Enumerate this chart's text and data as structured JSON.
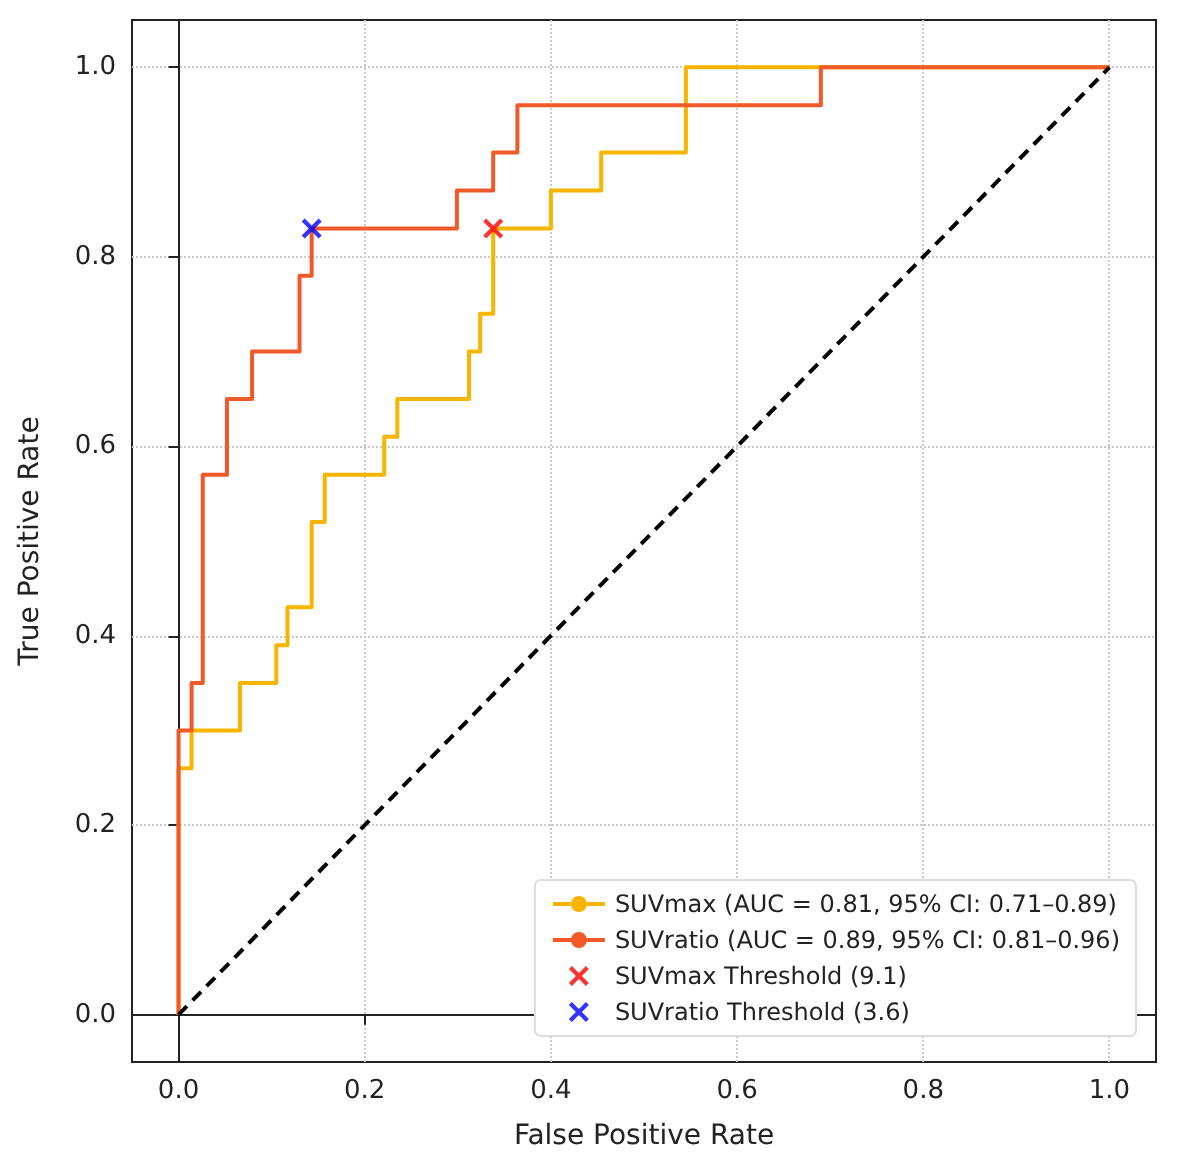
{
  "chart_data": {
    "type": "step",
    "xlabel": "False Positive Rate",
    "ylabel": "True Positive Rate",
    "xlim": [
      -0.05,
      1.05
    ],
    "ylim": [
      -0.05,
      1.05
    ],
    "xticks": [
      {
        "value": 0,
        "label": "0.0"
      },
      {
        "value": 0.2,
        "label": "0.2"
      },
      {
        "value": 0.4,
        "label": "0.4"
      },
      {
        "value": 0.6,
        "label": "0.6"
      },
      {
        "value": 0.8,
        "label": "0.8"
      },
      {
        "value": 1,
        "label": "1.0"
      }
    ],
    "yticks": [
      {
        "value": 0,
        "label": "0.0"
      },
      {
        "value": 0.2,
        "label": "0.2"
      },
      {
        "value": 0.4,
        "label": "0.4"
      },
      {
        "value": 0.6,
        "label": "0.6"
      },
      {
        "value": 0.8,
        "label": "0.8"
      },
      {
        "value": 1,
        "label": "1.0"
      }
    ],
    "grid": true,
    "legend": "bottom right",
    "series": [
      {
        "name": "SUVmax (AUC = 0.81, 95% CI: 0.71–0.89)",
        "color": "#f7b500",
        "x": [
          0,
          0,
          0.014,
          0.066,
          0.105,
          0.117,
          0.143,
          0.157,
          0.221,
          0.235,
          0.312,
          0.324,
          0.338,
          0.4,
          0.454,
          0.545,
          1
        ],
        "values": [
          0,
          0.26,
          0.3,
          0.35,
          0.39,
          0.43,
          0.52,
          0.57,
          0.61,
          0.65,
          0.7,
          0.74,
          0.83,
          0.87,
          0.91,
          1,
          1
        ]
      },
      {
        "name": "SUVratio (AUC = 0.89, 95% CI: 0.81–0.96)",
        "color": "#f05a28",
        "x": [
          0,
          0,
          0.014,
          0.026,
          0.052,
          0.079,
          0.13,
          0.143,
          0.299,
          0.338,
          0.364,
          0.69,
          1
        ],
        "values": [
          0,
          0.3,
          0.35,
          0.57,
          0.65,
          0.7,
          0.78,
          0.83,
          0.87,
          0.91,
          0.96,
          1,
          1
        ]
      },
      {
        "type": "line",
        "color": "#000000",
        "line_style": "dashed",
        "marker": "none",
        "x": [
          0,
          1
        ],
        "values": [
          0,
          1
        ]
      },
      {
        "type": "scatter",
        "name": "SUVmax Threshold (9.1)",
        "color": "#ff0000",
        "marker": "cross",
        "x": [
          0.338
        ],
        "values": [
          0.83
        ]
      },
      {
        "type": "scatter",
        "name": "SUVratio Threshold (3.6)",
        "color": "#0000ff",
        "marker": "cross",
        "x": [
          0.143
        ],
        "values": [
          0.83
        ]
      }
    ]
  }
}
